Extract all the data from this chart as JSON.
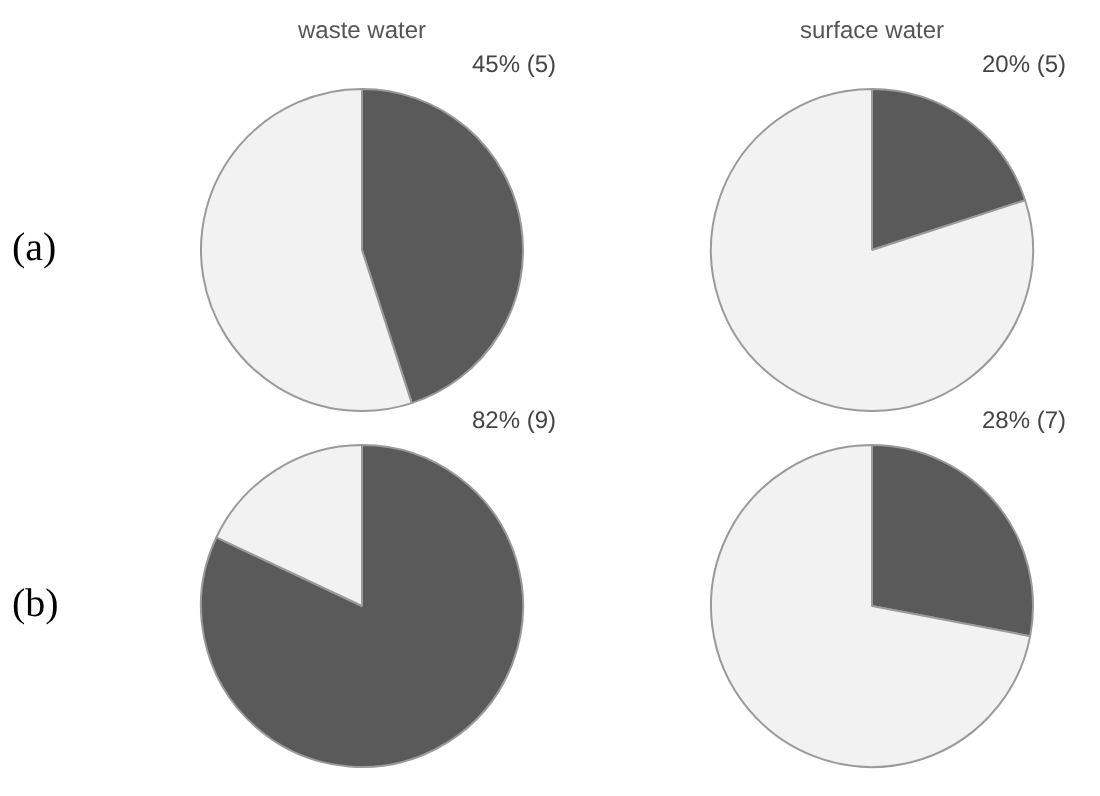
{
  "chart_data": [
    {
      "type": "pie",
      "title": "waste water",
      "categories": [
        null,
        null
      ],
      "values": [
        45,
        55
      ],
      "colors": [
        "#5a5a5a",
        "#f2f2f2"
      ],
      "value_labels": [
        "45% (5)",
        null
      ],
      "annotations": [
        "(a)"
      ]
    },
    {
      "type": "pie",
      "title": "surface water",
      "categories": [
        null,
        null
      ],
      "values": [
        20,
        80
      ],
      "colors": [
        "#5a5a5a",
        "#f2f2f2"
      ],
      "value_labels": [
        "20% (5)",
        null
      ]
    },
    {
      "type": "pie",
      "categories": [
        null,
        null
      ],
      "values": [
        82,
        18
      ],
      "colors": [
        "#5a5a5a",
        "#f2f2f2"
      ],
      "value_labels": [
        "82% (9)",
        null
      ],
      "annotations": [
        "(b)"
      ]
    },
    {
      "type": "pie",
      "categories": [
        null,
        null
      ],
      "values": [
        28,
        72
      ],
      "colors": [
        "#5a5a5a",
        "#f2f2f2"
      ],
      "value_labels": [
        "28% (7)",
        null
      ]
    }
  ]
}
